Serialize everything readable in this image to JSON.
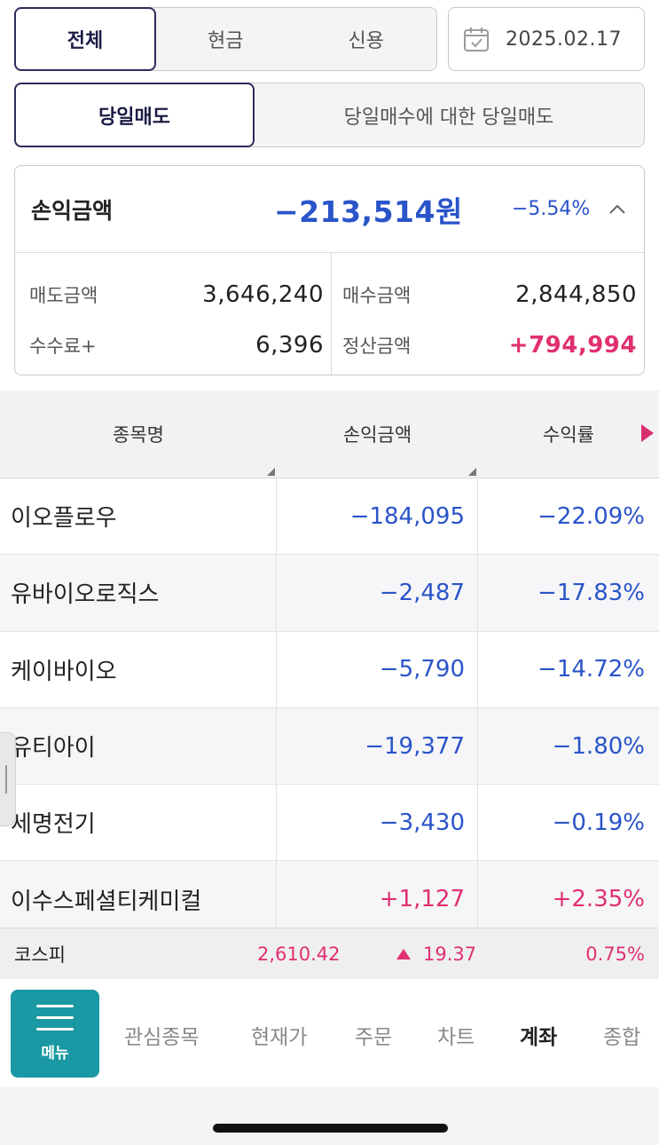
{
  "filter": {
    "all": "전체",
    "cash": "현금",
    "credit": "신용"
  },
  "date": "2025.02.17",
  "trade_type": {
    "same_day_sell": "당일매도",
    "same_day_buy_sell": "당일매수에 대한 당일매도"
  },
  "summary": {
    "title": "손익금액",
    "amount": "−213,514원",
    "rate": "−5.54%",
    "sell_label": "매도금액",
    "sell_value": "3,646,240",
    "buy_label": "매수금액",
    "buy_value": "2,844,850",
    "fee_label": "수수료+",
    "fee_value": "6,396",
    "settle_label": "정산금액",
    "settle_value": "+794,994"
  },
  "table": {
    "headers": [
      "종목명",
      "손익금액",
      "수익률"
    ],
    "rows": [
      {
        "name": "이오플로우",
        "pl": "−184,095",
        "rate": "−22.09%",
        "dir": "down"
      },
      {
        "name": "유바이오로직스",
        "pl": "−2,487",
        "rate": "−17.83%",
        "dir": "down"
      },
      {
        "name": "케이바이오",
        "pl": "−5,790",
        "rate": "−14.72%",
        "dir": "down"
      },
      {
        "name": "유티아이",
        "pl": "−19,377",
        "rate": "−1.80%",
        "dir": "down"
      },
      {
        "name": "세명전기",
        "pl": "−3,430",
        "rate": "−0.19%",
        "dir": "down"
      },
      {
        "name": "이수스페셜티케미컬",
        "pl": "+1,127",
        "rate": "+2.35%",
        "dir": "up"
      }
    ]
  },
  "ticker": {
    "name": "코스피",
    "value": "2,610.42",
    "change": "19.37",
    "rate": "0.75%"
  },
  "nav": {
    "menu": "메뉴",
    "items": [
      "관심종목",
      "현재가",
      "주문",
      "차트",
      "계좌",
      "종합"
    ]
  },
  "colors": {
    "accent": "#2b2d5a",
    "down": "#2a54c9",
    "up": "#e0306f",
    "menu": "#1a98a4"
  }
}
